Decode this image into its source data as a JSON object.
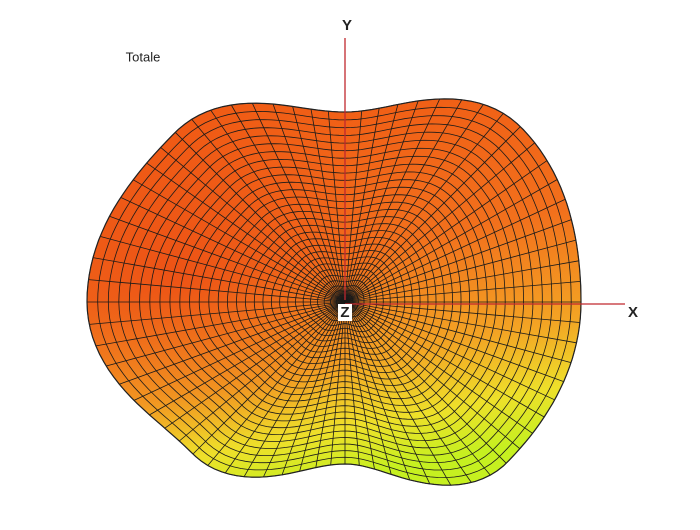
{
  "title": "Totale",
  "axes": {
    "y": "Y",
    "x": "X",
    "z": "Z"
  }
}
